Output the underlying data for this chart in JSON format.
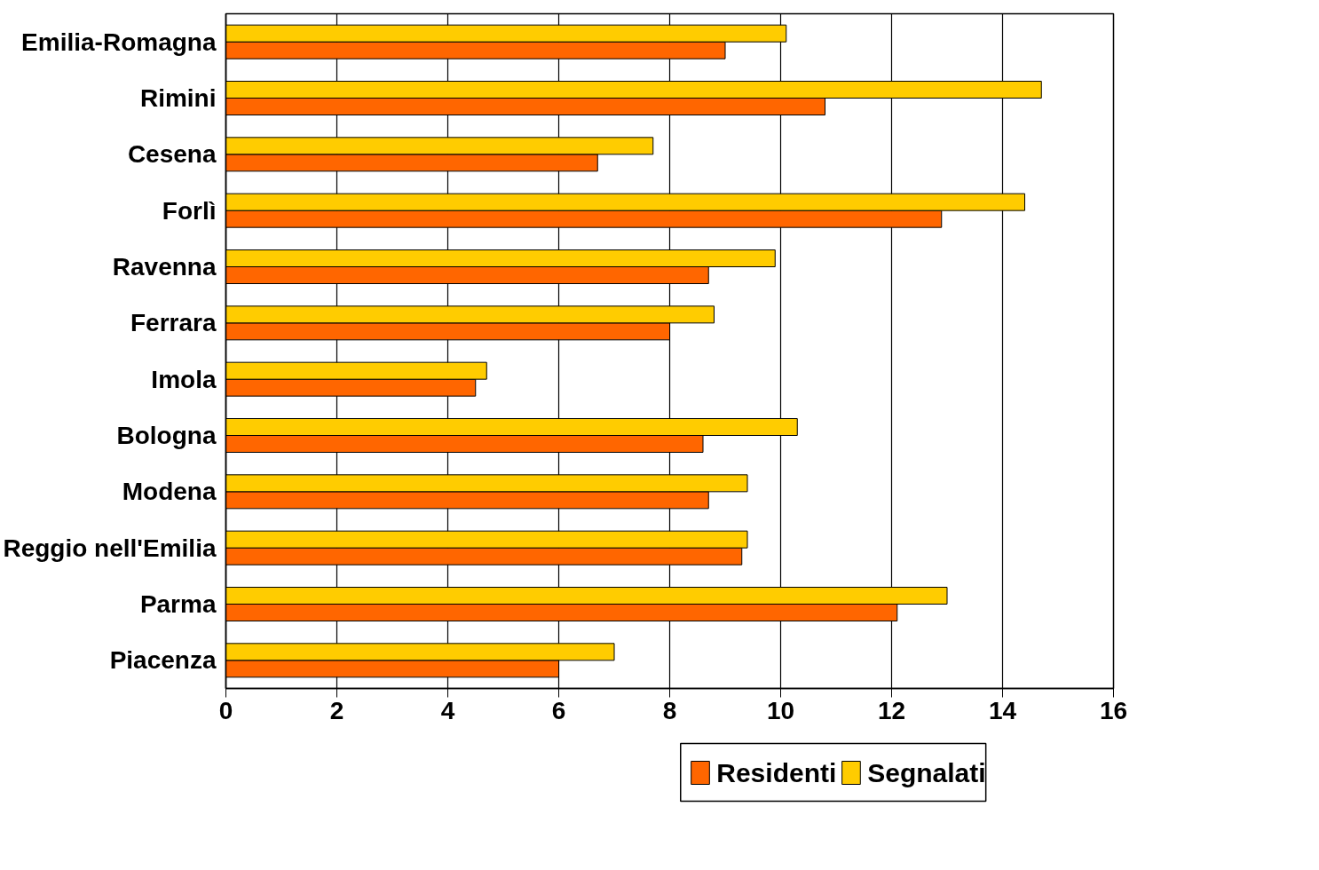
{
  "chart_data": {
    "type": "bar",
    "orientation": "horizontal",
    "categories": [
      "Emilia-Romagna",
      "Rimini",
      "Cesena",
      "Forlì",
      "Ravenna",
      "Ferrara",
      "Imola",
      "Bologna",
      "Modena",
      "Reggio nell'Emilia",
      "Parma",
      "Piacenza"
    ],
    "series": [
      {
        "name": "Residenti",
        "color": "#ff6600",
        "values": [
          9.0,
          10.8,
          6.7,
          12.9,
          8.7,
          8.0,
          4.5,
          8.6,
          8.7,
          9.3,
          12.1,
          6.0
        ]
      },
      {
        "name": "Segnalati",
        "color": "#ffcc00",
        "values": [
          10.1,
          14.7,
          7.7,
          14.4,
          9.9,
          8.8,
          4.7,
          10.3,
          9.4,
          9.4,
          13.0,
          7.0
        ]
      }
    ],
    "xlim": [
      0,
      16
    ],
    "xticks": [
      0,
      2,
      4,
      6,
      8,
      10,
      12,
      14,
      16
    ],
    "grid": "x",
    "legend": "bottom"
  }
}
